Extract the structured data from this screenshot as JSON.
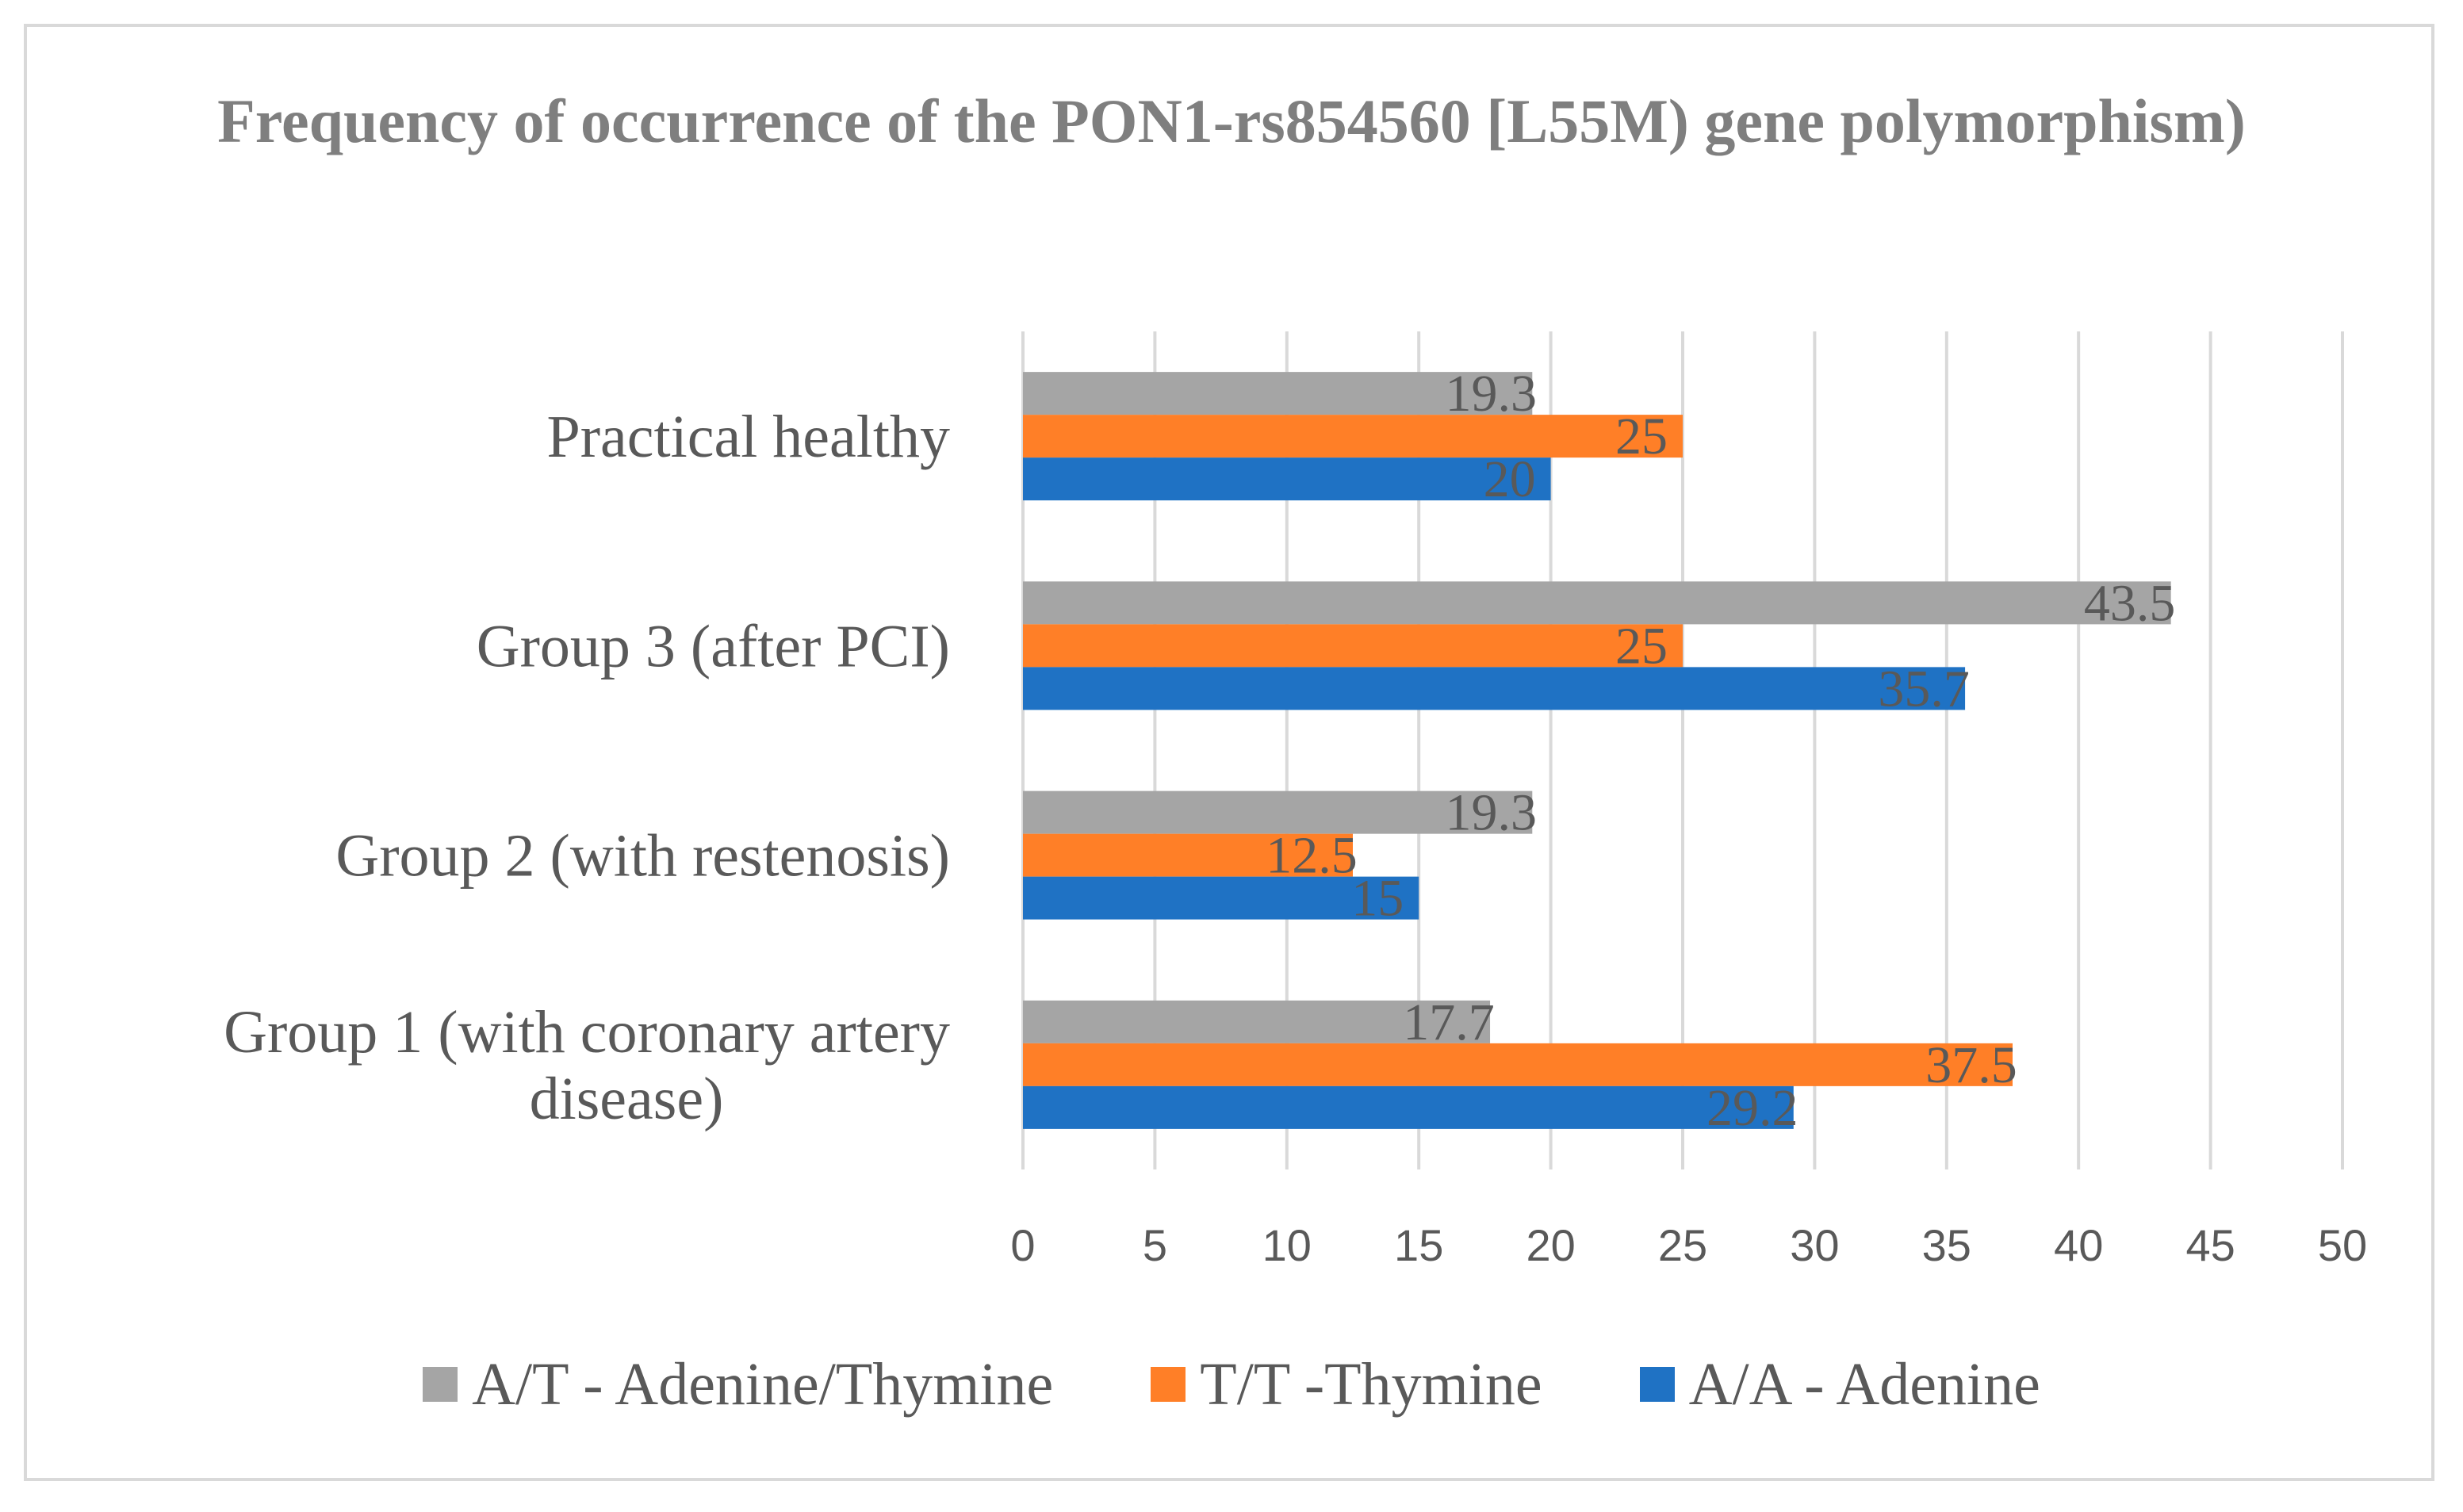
{
  "chart_data": {
    "type": "bar",
    "orientation": "horizontal",
    "title": "Frequency of occurrence of the PON1-rs854560 [L55M) gene polymorphism)",
    "categories": [
      "Group 1 (with coronary artery disease)",
      "Group 2 (with restenosis)",
      "Group 3 (after PCI)",
      "Practical healthy"
    ],
    "series": [
      {
        "name": "A/T - Adenine/Thymine",
        "color": "#a5a5a5",
        "values": [
          17.7,
          19.3,
          43.5,
          19.3
        ]
      },
      {
        "name": "T/T -Thymine",
        "color": "#ff7f27",
        "values": [
          37.5,
          12.5,
          25,
          25
        ]
      },
      {
        "name": "A/A - Adenine",
        "color": "#1f72c4",
        "values": [
          29.2,
          15,
          35.7,
          20
        ]
      }
    ],
    "xlim": [
      0,
      50
    ],
    "xticks": [
      0,
      5,
      10,
      15,
      20,
      25,
      30,
      35,
      40,
      45,
      50
    ],
    "grid": true,
    "legend_position": "bottom"
  }
}
